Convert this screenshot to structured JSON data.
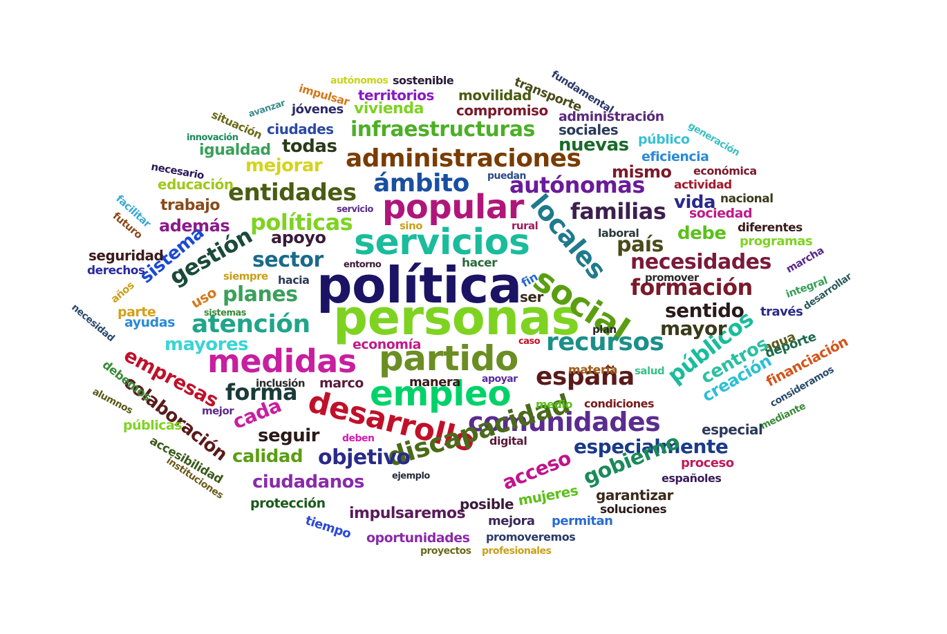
{
  "word_cloud": {
    "words": [
      {
        "text": "personas",
        "color": "#7ed321"
      },
      {
        "text": "política",
        "color": "#1b1464"
      },
      {
        "text": "servicios",
        "color": "#1abc9c"
      },
      {
        "text": "popular",
        "color": "#b0167a"
      },
      {
        "text": "partido",
        "color": "#6b8e23"
      },
      {
        "text": "empleo",
        "color": "#00d26a"
      },
      {
        "text": "medidas",
        "color": "#c71fa0"
      },
      {
        "text": "social",
        "color": "#5a9e12"
      },
      {
        "text": "desarrollo",
        "color": "#c0112a"
      },
      {
        "text": "comunidades",
        "color": "#5b2c8f"
      },
      {
        "text": "discapacidad",
        "color": "#4a6b1a"
      },
      {
        "text": "locales",
        "color": "#1f7a8c"
      },
      {
        "text": "administraciones",
        "color": "#7a3c00"
      },
      {
        "text": "infraestructuras",
        "color": "#4caf27"
      },
      {
        "text": "ámbito",
        "color": "#1a4fa0"
      },
      {
        "text": "autónomas",
        "color": "#6a1b9a"
      },
      {
        "text": "atención",
        "color": "#20a58a"
      },
      {
        "text": "recursos",
        "color": "#1c8f8a"
      },
      {
        "text": "españa",
        "color": "#5a1a1a"
      },
      {
        "text": "entidades",
        "color": "#4a5c12"
      },
      {
        "text": "políticas",
        "color": "#7ed321"
      },
      {
        "text": "familias",
        "color": "#3c1f4f"
      },
      {
        "text": "formación",
        "color": "#7a1a2a"
      },
      {
        "text": "necesidades",
        "color": "#7a1a3a"
      },
      {
        "text": "públicos",
        "color": "#1abc9c"
      },
      {
        "text": "especialmente",
        "color": "#1a3a8a"
      },
      {
        "text": "objetivo",
        "color": "#2a2a8a"
      },
      {
        "text": "gestión",
        "color": "#1a4a3a"
      },
      {
        "text": "sector",
        "color": "#1a6a8a"
      },
      {
        "text": "planes",
        "color": "#3aa05a"
      },
      {
        "text": "forma",
        "color": "#1a3a3a"
      },
      {
        "text": "mayor",
        "color": "#3a3a1a"
      },
      {
        "text": "sentido",
        "color": "#2a1a1a"
      },
      {
        "text": "gobierno",
        "color": "#1a8a5a"
      },
      {
        "text": "acceso",
        "color": "#c0148c"
      },
      {
        "text": "mayores",
        "color": "#3ad4d4"
      },
      {
        "text": "empresas",
        "color": "#c0112a"
      },
      {
        "text": "colaboración",
        "color": "#5a1a1a"
      },
      {
        "text": "ciudadanos",
        "color": "#8a2aaa"
      },
      {
        "text": "calidad",
        "color": "#5a9e12"
      },
      {
        "text": "seguir",
        "color": "#2a1a1a"
      },
      {
        "text": "cada",
        "color": "#c71fa0"
      },
      {
        "text": "sistema",
        "color": "#1a4ad4"
      },
      {
        "text": "apoyo",
        "color": "#3a1a3a"
      },
      {
        "text": "país",
        "color": "#4a4a1a"
      },
      {
        "text": "vida",
        "color": "#2a2a8a"
      },
      {
        "text": "mismo",
        "color": "#7a1a2a"
      },
      {
        "text": "debe",
        "color": "#5ac01a"
      },
      {
        "text": "nuevas",
        "color": "#1a6a2a"
      },
      {
        "text": "mejorar",
        "color": "#d4d41a"
      },
      {
        "text": "todas",
        "color": "#2a3a1a"
      },
      {
        "text": "además",
        "color": "#8a1a8a"
      },
      {
        "text": "trabajo",
        "color": "#8a4a1a"
      },
      {
        "text": "educación",
        "color": "#a0c81a"
      },
      {
        "text": "igualdad",
        "color": "#3aa05a"
      },
      {
        "text": "ciudades",
        "color": "#2a4aa0"
      },
      {
        "text": "vivienda",
        "color": "#7ed321"
      },
      {
        "text": "jóvenes",
        "color": "#2a2a6a"
      },
      {
        "text": "compromiso",
        "color": "#7a1a2a"
      },
      {
        "text": "movilidad",
        "color": "#4a5c12"
      },
      {
        "text": "territorios",
        "color": "#8a1ac0"
      },
      {
        "text": "sostenible",
        "color": "#2a1a3a"
      },
      {
        "text": "autónomos",
        "color": "#c8d41a"
      },
      {
        "text": "impulsar",
        "color": "#d4781a"
      },
      {
        "text": "transporte",
        "color": "#4a4a1a"
      },
      {
        "text": "fundamental",
        "color": "#2a3a6a"
      },
      {
        "text": "administración",
        "color": "#5a2a7a"
      },
      {
        "text": "sociales",
        "color": "#2a3a5a"
      },
      {
        "text": "público",
        "color": "#3ac0d4"
      },
      {
        "text": "eficiencia",
        "color": "#2a8ad4"
      },
      {
        "text": "generación",
        "color": "#3ac0c0"
      },
      {
        "text": "económica",
        "color": "#7a1a2a"
      },
      {
        "text": "actividad",
        "color": "#a01a2a"
      },
      {
        "text": "nacional",
        "color": "#3a3a1a"
      },
      {
        "text": "sociedad",
        "color": "#c01a8a"
      },
      {
        "text": "diferentes",
        "color": "#3a1a1a"
      },
      {
        "text": "programas",
        "color": "#7ed321"
      },
      {
        "text": "laboral",
        "color": "#2a3a3a"
      },
      {
        "text": "situación",
        "color": "#6a6a1a"
      },
      {
        "text": "avanzar",
        "color": "#3a8a8a"
      },
      {
        "text": "innovación",
        "color": "#1a8a5a"
      },
      {
        "text": "necesario",
        "color": "#2a1a5a"
      },
      {
        "text": "puedan",
        "color": "#2a4a8a"
      },
      {
        "text": "facilitar",
        "color": "#3aaad4"
      },
      {
        "text": "futuro",
        "color": "#8a4a1a"
      },
      {
        "text": "servicio",
        "color": "#5a2a8a"
      },
      {
        "text": "sino",
        "color": "#c8a01a"
      },
      {
        "text": "rural",
        "color": "#a01a5a"
      },
      {
        "text": "seguridad",
        "color": "#3a1a1a"
      },
      {
        "text": "derechos",
        "color": "#2a2aa0"
      },
      {
        "text": "entorno",
        "color": "#3a1a3a"
      },
      {
        "text": "hacer",
        "color": "#2a6a3a"
      },
      {
        "text": "siempre",
        "color": "#c8a01a"
      },
      {
        "text": "hacia",
        "color": "#2a3a5a"
      },
      {
        "text": "fin",
        "color": "#2a6ad4"
      },
      {
        "text": "ser",
        "color": "#3a2a1a"
      },
      {
        "text": "promover",
        "color": "#2a2a2a"
      },
      {
        "text": "marcha",
        "color": "#5a2a8a"
      },
      {
        "text": "integral",
        "color": "#3aa05a"
      },
      {
        "text": "través",
        "color": "#2a2a8a"
      },
      {
        "text": "desarrollar",
        "color": "#2a5a5a"
      },
      {
        "text": "años",
        "color": "#c8a01a"
      },
      {
        "text": "uso",
        "color": "#d4781a"
      },
      {
        "text": "parte",
        "color": "#d4a01a"
      },
      {
        "text": "ayudas",
        "color": "#2a8ad4"
      },
      {
        "text": "sistemas",
        "color": "#3a8a3a"
      },
      {
        "text": "necesidad",
        "color": "#2a4a6a"
      },
      {
        "text": "economía",
        "color": "#c01a8a"
      },
      {
        "text": "caso",
        "color": "#c0112a"
      },
      {
        "text": "plan",
        "color": "#2a2a2a"
      },
      {
        "text": "agua",
        "color": "#5a5a1a"
      },
      {
        "text": "deporte",
        "color": "#1a6a4a"
      },
      {
        "text": "centros",
        "color": "#2ac0a0"
      },
      {
        "text": "creación",
        "color": "#2ac0d4"
      },
      {
        "text": "financiación",
        "color": "#d4541a"
      },
      {
        "text": "consideramos",
        "color": "#2a4a6a"
      },
      {
        "text": "mediante",
        "color": "#3a8a3a"
      },
      {
        "text": "especial",
        "color": "#2a3a5a"
      },
      {
        "text": "materia",
        "color": "#a05a1a"
      },
      {
        "text": "salud",
        "color": "#3ac08a"
      },
      {
        "text": "inclusión",
        "color": "#2a2a2a"
      },
      {
        "text": "marco",
        "color": "#5a1a3a"
      },
      {
        "text": "manera",
        "color": "#3a1a1a"
      },
      {
        "text": "apoyar",
        "color": "#5a2aa0"
      },
      {
        "text": "medio",
        "color": "#5ac01a"
      },
      {
        "text": "condiciones",
        "color": "#7a1a1a"
      },
      {
        "text": "debemos",
        "color": "#3a8a3a"
      },
      {
        "text": "alumnos",
        "color": "#5a5a1a"
      },
      {
        "text": "mejor",
        "color": "#5a2a8a"
      },
      {
        "text": "públicas",
        "color": "#7ed321"
      },
      {
        "text": "deben",
        "color": "#d41ab0"
      },
      {
        "text": "digital",
        "color": "#5a1a3a"
      },
      {
        "text": "proceso",
        "color": "#c01a5a"
      },
      {
        "text": "españoles",
        "color": "#3a1a5a"
      },
      {
        "text": "accesibilidad",
        "color": "#3a5a1a"
      },
      {
        "text": "instituciones",
        "color": "#6a5a1a"
      },
      {
        "text": "ejemplo",
        "color": "#2a2a3a"
      },
      {
        "text": "garantizar",
        "color": "#3a2a1a"
      },
      {
        "text": "soluciones",
        "color": "#2a1a1a"
      },
      {
        "text": "protección",
        "color": "#1a5a1a"
      },
      {
        "text": "mujeres",
        "color": "#5ac01a"
      },
      {
        "text": "impulsaremos",
        "color": "#5a1a5a"
      },
      {
        "text": "posible",
        "color": "#3a1a3a"
      },
      {
        "text": "mejora",
        "color": "#3a2a5a"
      },
      {
        "text": "permitan",
        "color": "#2a6ad4"
      },
      {
        "text": "tiempo",
        "color": "#2a4ad4"
      },
      {
        "text": "oportunidades",
        "color": "#8a2aaa"
      },
      {
        "text": "promoveremos",
        "color": "#2a3a6a"
      },
      {
        "text": "proyectos",
        "color": "#6a6a1a"
      },
      {
        "text": "profesionales",
        "color": "#c8a01a"
      }
    ]
  }
}
